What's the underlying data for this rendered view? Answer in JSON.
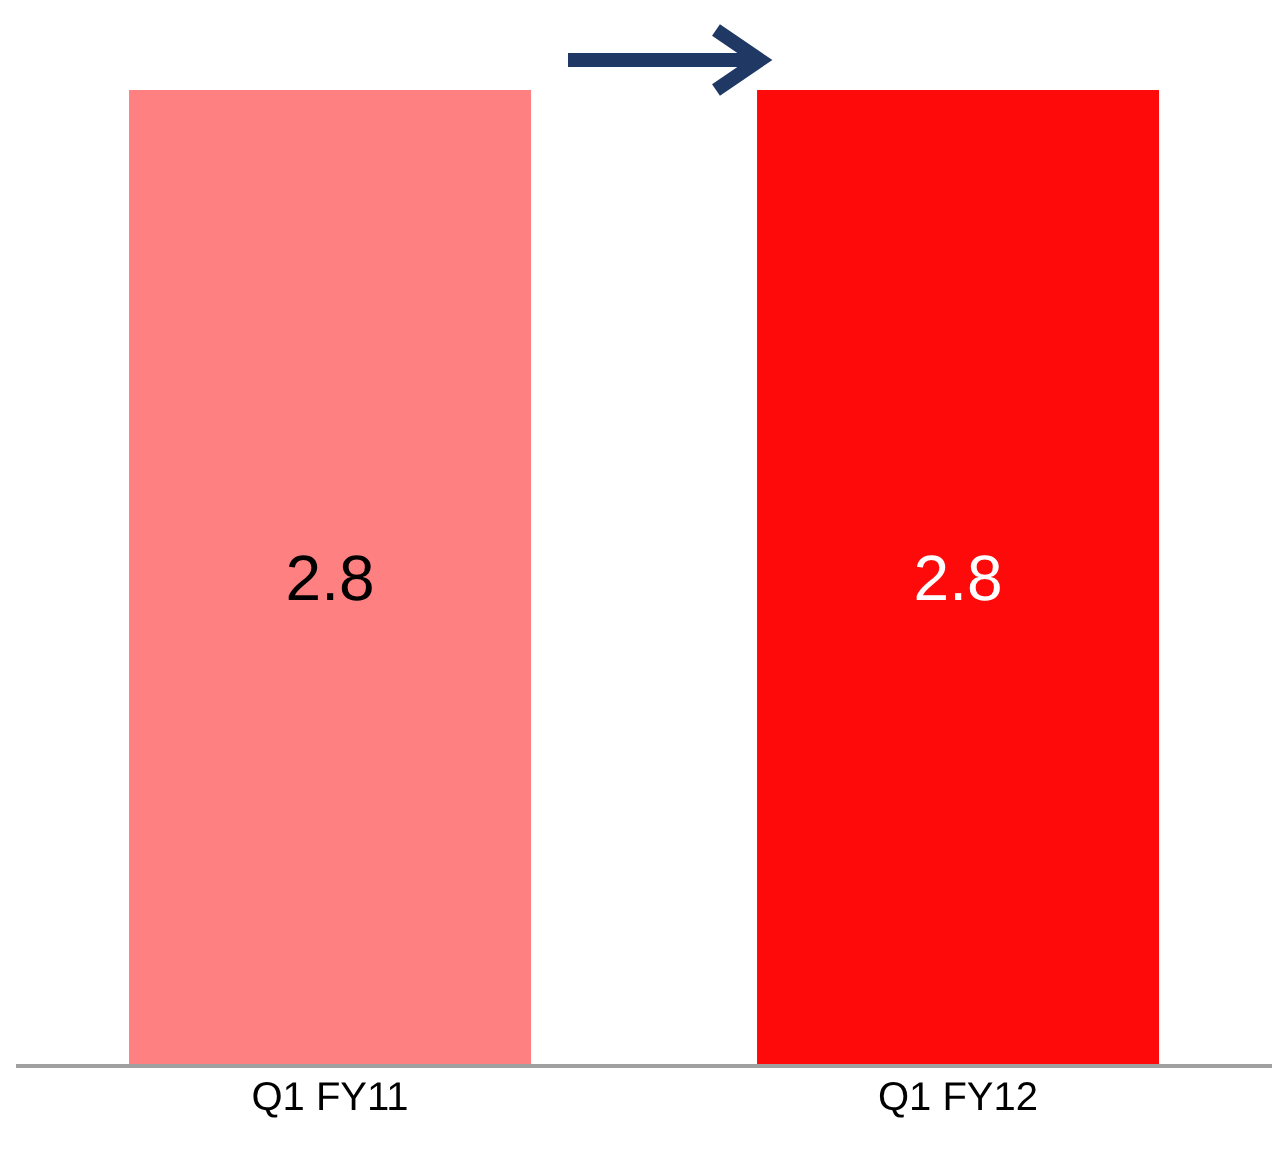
{
  "chart_data": {
    "type": "bar",
    "categories": [
      "Q1 FY11",
      "Q1 FY12"
    ],
    "values": [
      2.8,
      2.8
    ],
    "colors": [
      "#ff8080",
      "#ff0a0a"
    ],
    "data_labels": true
  }
}
